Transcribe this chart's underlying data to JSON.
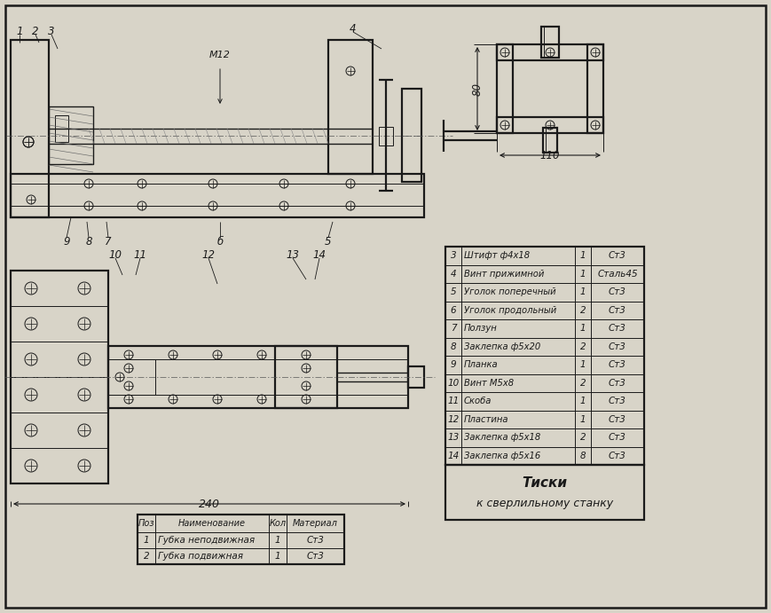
{
  "bg_color": "#d8d4c8",
  "line_color": "#1a1a1a",
  "title": "Тиски",
  "subtitle": "к сверлильному станку",
  "table1_header": [
    "Поз",
    "Наименование",
    "Кол",
    "Материал"
  ],
  "table1_rows": [
    [
      "1",
      "Губка неподвижная",
      "1",
      "Ст3"
    ],
    [
      "2",
      "Губка подвижная",
      "1",
      "Ст3"
    ]
  ],
  "table2_rows": [
    [
      "3",
      "Штифт ф4х18",
      "1",
      "Ст3"
    ],
    [
      "4",
      "Винт прижимной",
      "1",
      "Сталь45"
    ],
    [
      "5",
      "Уголок поперечный",
      "1",
      "Ст3"
    ],
    [
      "6",
      "Уголок продольный",
      "2",
      "Ст3"
    ],
    [
      "7",
      "Ползун",
      "1",
      "Ст3"
    ],
    [
      "8",
      "Заклепка ф5х20",
      "2",
      "Ст3"
    ],
    [
      "9",
      "Планка",
      "1",
      "Ст3"
    ],
    [
      "10",
      "Винт М5х8",
      "2",
      "Ст3"
    ],
    [
      "11",
      "Скоба",
      "1",
      "Ст3"
    ],
    [
      "12",
      "Пластина",
      "1",
      "Ст3"
    ],
    [
      "13",
      "Заклепка ф5х18",
      "2",
      "Ст3"
    ],
    [
      "14",
      "Заклепка ф5х16",
      "8",
      "Ст3"
    ]
  ],
  "dim_240": "240",
  "dim_80": "80",
  "dim_110": "110",
  "label_M12": "М12"
}
